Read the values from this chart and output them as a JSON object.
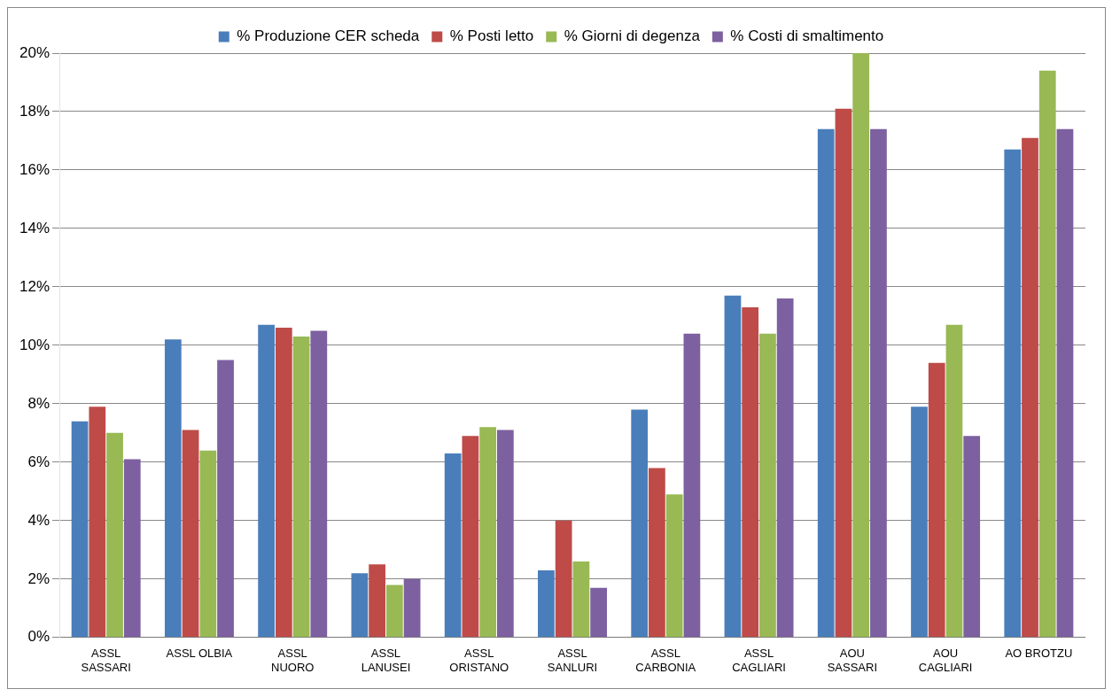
{
  "chart_data": {
    "type": "bar",
    "categories": [
      "ASSL\nSASSARI",
      "ASSL OLBIA",
      "ASSL\nNUORO",
      "ASSL\nLANUSEI",
      "ASSL\nORISTANO",
      "ASSL\nSANLURI",
      "ASSL\nCARBONIA",
      "ASSL\nCAGLIARI",
      "AOU\nSASSARI",
      "AOU\nCAGLIARI",
      "AO BROTZU"
    ],
    "series": [
      {
        "name": "% Produzione CER scheda",
        "color": "#4a7ebb",
        "values": [
          7.4,
          10.2,
          10.7,
          2.2,
          6.3,
          2.3,
          7.8,
          11.7,
          17.4,
          7.9,
          16.7
        ]
      },
      {
        "name": "% Posti letto",
        "color": "#be4b48",
        "values": [
          7.9,
          7.1,
          10.6,
          2.5,
          6.9,
          4.0,
          5.8,
          11.3,
          18.1,
          9.4,
          17.1
        ]
      },
      {
        "name": "% Giorni di degenza",
        "color": "#98b954",
        "values": [
          7.0,
          6.4,
          10.3,
          1.8,
          7.2,
          2.6,
          4.9,
          10.4,
          20.0,
          10.7,
          19.4
        ]
      },
      {
        "name": "% Costi di smaltimento",
        "color": "#7d60a0",
        "values": [
          6.1,
          9.5,
          10.5,
          2.0,
          7.1,
          1.7,
          10.4,
          11.6,
          17.4,
          6.9,
          17.4
        ]
      }
    ],
    "ylim": [
      0,
      20
    ],
    "yticks": [
      {
        "value": 0,
        "label": "0%"
      },
      {
        "value": 2,
        "label": "2%"
      },
      {
        "value": 4,
        "label": "4%"
      },
      {
        "value": 6,
        "label": "6%"
      },
      {
        "value": 8,
        "label": "8%"
      },
      {
        "value": 10,
        "label": "10%"
      },
      {
        "value": 12,
        "label": "12%"
      },
      {
        "value": 14,
        "label": "14%"
      },
      {
        "value": 16,
        "label": "16%"
      },
      {
        "value": 18,
        "label": "18%"
      },
      {
        "value": 20,
        "label": "20%"
      }
    ],
    "grid": "y",
    "legend": "top"
  }
}
